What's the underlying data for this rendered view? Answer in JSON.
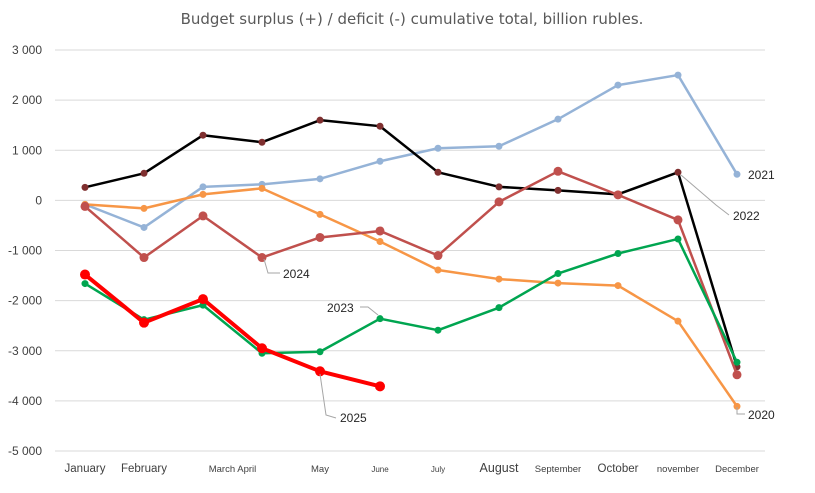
{
  "chart_data": {
    "type": "line",
    "title": "Budget surplus (+) / deficit (-) cumulative total, billion rubles.",
    "xlabel": "",
    "ylabel": "",
    "ylim": [
      -5000,
      3000
    ],
    "yticks": [
      3000,
      2000,
      1000,
      0,
      -1000,
      -2000,
      -3000,
      -4000,
      -5000
    ],
    "ytick_labels": [
      "3 000",
      "2 000",
      "1 000",
      "0",
      "-1 000",
      "-2 000",
      "-3 000",
      "-4 000",
      "-5 000"
    ],
    "categories": [
      "January",
      "February",
      "March",
      "April",
      "May",
      "June",
      "July",
      "August",
      "September",
      "October",
      "november",
      "December"
    ],
    "x_tick_labels": [
      {
        "text": "January",
        "cat": 0,
        "size": "s"
      },
      {
        "text": "February",
        "cat": 1,
        "size": "s"
      },
      {
        "text": "March April",
        "cat": 2.5,
        "size": "xs"
      },
      {
        "text": "May",
        "cat": 4,
        "size": "xs"
      },
      {
        "text": "June",
        "cat": 5,
        "size": "xxs"
      },
      {
        "text": "July",
        "cat": 6,
        "size": "xxs"
      },
      {
        "text": "August",
        "cat": 7,
        "size": "m"
      },
      {
        "text": "September",
        "cat": 8,
        "size": "xs"
      },
      {
        "text": "October",
        "cat": 9,
        "size": "s"
      },
      {
        "text": "november",
        "cat": 10,
        "size": "xs"
      },
      {
        "text": "December",
        "cat": 11,
        "size": "xs"
      }
    ],
    "grid": true,
    "series": [
      {
        "name": "2021",
        "color": "#95b3d7",
        "width": 2.5,
        "marker": 3.5,
        "values": [
          -80,
          -540,
          270,
          320,
          430,
          780,
          1040,
          1080,
          1620,
          2300,
          2500,
          520
        ]
      },
      {
        "name": "2022",
        "color": "#000000",
        "width": 2.5,
        "marker": 3.5,
        "marker_color": "#7f2f2f",
        "values": [
          260,
          540,
          1300,
          1160,
          1600,
          1480,
          560,
          270,
          200,
          120,
          560,
          -3320
        ]
      },
      {
        "name": "2020",
        "color": "#f79646",
        "width": 2.5,
        "marker": 3.5,
        "values": [
          -80,
          -160,
          120,
          240,
          -280,
          -820,
          -1390,
          -1570,
          -1650,
          -1700,
          -2410,
          -4110
        ]
      },
      {
        "name": "2024",
        "color": "#c0504d",
        "width": 2.5,
        "marker": 4.5,
        "values": [
          -120,
          -1140,
          -310,
          -1140,
          -740,
          -610,
          -1100,
          -30,
          580,
          110,
          -390,
          -3480
        ]
      },
      {
        "name": "2023",
        "color": "#00a550",
        "width": 2.5,
        "marker": 3.5,
        "values": [
          -1660,
          -2380,
          -2090,
          -3050,
          -3020,
          -2360,
          -2590,
          -2140,
          -1460,
          -1060,
          -770,
          -3230
        ]
      },
      {
        "name": "2025",
        "color": "#ff0000",
        "width": 4,
        "marker": 5,
        "values": [
          -1480,
          -2440,
          -1970,
          -2950,
          -3410,
          -3710,
          null,
          null,
          null,
          null,
          null,
          null
        ]
      }
    ],
    "annotations": [
      {
        "text": "2021",
        "series": "2021",
        "leader": false
      },
      {
        "text": "2022",
        "series": "2022",
        "leader": true
      },
      {
        "text": "2020",
        "series": "2020",
        "leader": true
      },
      {
        "text": "2024",
        "series": "2024",
        "leader": true
      },
      {
        "text": "2023",
        "series": "2023",
        "leader": true
      },
      {
        "text": "2025",
        "series": "2025",
        "leader": true
      }
    ]
  }
}
